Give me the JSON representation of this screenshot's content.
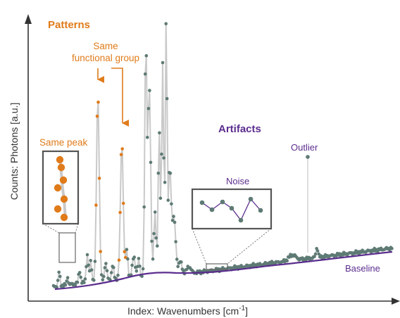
{
  "labels": {
    "patterns": "Patterns",
    "same_functional_group_line1": "Same",
    "same_functional_group_line2": "functional group",
    "same_peak": "Same peak",
    "artifacts": "Artifacts",
    "outlier": "Outlier",
    "noise": "Noise",
    "baseline": "Baseline",
    "xlabel_main": "Index: Wavenumbers [cm",
    "xlabel_sup": "-1",
    "xlabel_close": "]",
    "ylabel": "Counts: Photons [a.u.]"
  },
  "colors": {
    "spectrum_points": "#5e7a74",
    "spectrum_line": "#c9c9c9",
    "highlight": "#e07b1a",
    "artifact": "#5b2d8e",
    "axis": "#333333",
    "box_border": "#555555"
  }
}
